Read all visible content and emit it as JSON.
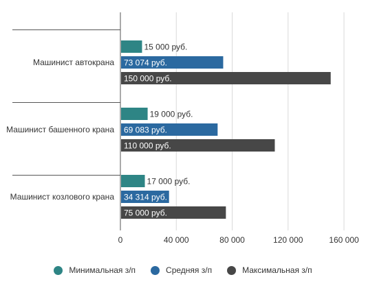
{
  "chart_data": {
    "type": "bar",
    "orientation": "horizontal",
    "categories": [
      "Машинист автокрана",
      "Машинист башенного крана",
      "Машинист козлового крана"
    ],
    "series": [
      {
        "name": "Минимальная з/п",
        "color": "#2e8585",
        "values": [
          15000,
          19000,
          17000
        ],
        "labels": [
          "15 000 руб.",
          "19 000 руб.",
          "17 000 руб."
        ]
      },
      {
        "name": "Средняя з/п",
        "color": "#2b69a0",
        "values": [
          73074,
          69083,
          34314
        ],
        "labels": [
          "73 074 руб.",
          "69 083 руб.",
          "34 314 руб."
        ]
      },
      {
        "name": "Максимальная з/п",
        "color": "#474747",
        "values": [
          150000,
          110000,
          75000
        ],
        "labels": [
          "150 000 руб.",
          "110 000 руб.",
          "75 000 руб."
        ]
      }
    ],
    "xlim": [
      0,
      160000
    ],
    "xticks": [
      0,
      40000,
      80000,
      120000,
      160000
    ],
    "xtick_labels": [
      "0",
      "40 000",
      "80 000",
      "120 000",
      "160 000"
    ],
    "grid": true,
    "legend_position": "bottom"
  }
}
